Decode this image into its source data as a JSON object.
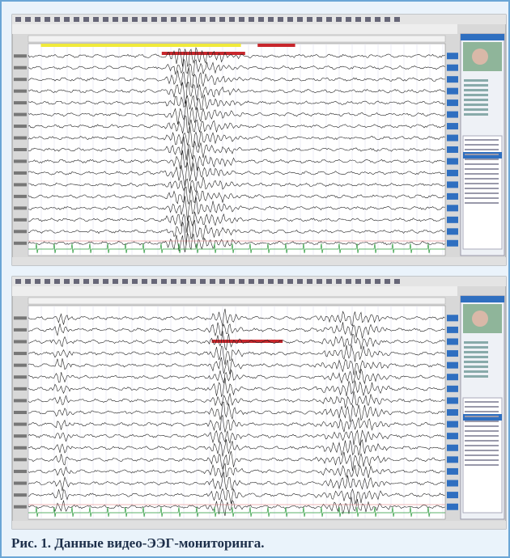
{
  "figure": {
    "caption": "Рис. 1. Данные видео-ЭЭГ-мониторинга."
  }
}
